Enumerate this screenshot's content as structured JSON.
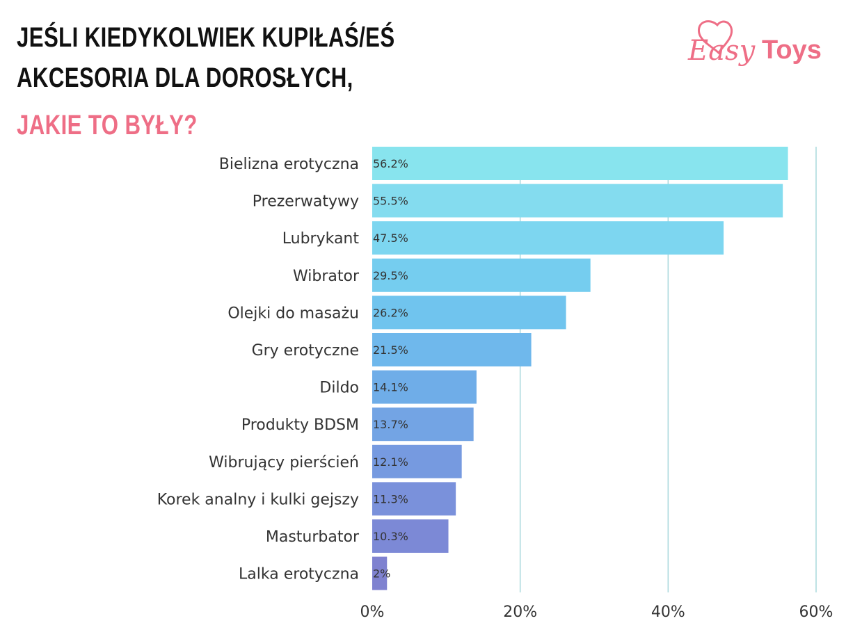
{
  "title": {
    "line1": "JEŚLI KIEDYKOLWIEK KUPIŁAŚ/EŚ",
    "line2": "AKCESORIA DLA DOROSŁYCH,",
    "line3": "JAKIE TO BYŁY?"
  },
  "logo": {
    "part1": "Easy",
    "part2": "Toys",
    "color": "#ee6e86",
    "icon": "heart-icon"
  },
  "chart_data": {
    "type": "bar",
    "orientation": "horizontal",
    "categories": [
      "Bielizna erotyczna",
      "Prezerwatywy",
      "Lubrykant",
      "Wibrator",
      "Olejki do masażu",
      "Gry erotyczne",
      "Dildo",
      "Produkty BDSM",
      "Wibrujący pierścień",
      "Korek analny i kulki gejszy",
      "Masturbator",
      "Lalka erotyczna"
    ],
    "values": [
      56.2,
      55.5,
      47.5,
      29.5,
      26.2,
      21.5,
      14.1,
      13.7,
      12.1,
      11.3,
      10.3,
      2
    ],
    "value_labels": [
      "56.2%",
      "55.5%",
      "47.5%",
      "29.5%",
      "26.2%",
      "21.5%",
      "14.1%",
      "13.7%",
      "12.1%",
      "11.3%",
      "10.3%",
      "2%"
    ],
    "xlim": [
      0,
      60
    ],
    "xticks": [
      0,
      20,
      40,
      60
    ],
    "xtick_labels": [
      "0%",
      "20%",
      "40%",
      "60%"
    ],
    "grid": true,
    "bar_colors": [
      "#88e4ee",
      "#84dcef",
      "#7dd6f0",
      "#75cdef",
      "#70c4ee",
      "#6fb8ec",
      "#6fade8",
      "#73a4e4",
      "#769ae0",
      "#7a91db",
      "#7c89d6",
      "#7f82d0"
    ],
    "grid_color": "#a8d8dc"
  }
}
